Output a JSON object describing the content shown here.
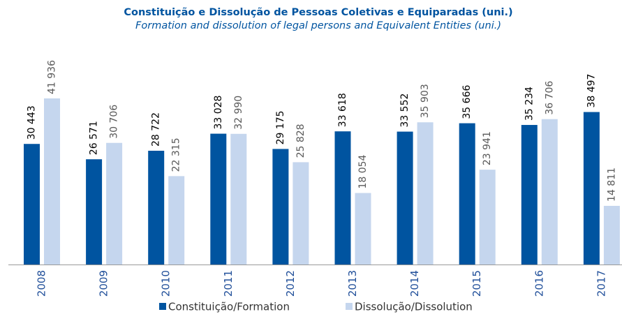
{
  "chart_data": {
    "type": "bar",
    "title": "Constituição e Dissolução de Pessoas Coletivas e Equiparadas (uni.)",
    "subtitle": "Formation and dissolution of legal persons and Equivalent Entities (uni.)",
    "categories": [
      "2008",
      "2009",
      "2010",
      "2011",
      "2012",
      "2013",
      "2014",
      "2015",
      "2016",
      "2017"
    ],
    "series": [
      {
        "name": "Constituição/Formation",
        "color": "#0054a0",
        "values": [
          30443,
          26571,
          28722,
          33028,
          29175,
          33618,
          33552,
          35666,
          35234,
          38497
        ],
        "value_labels": [
          "30 443",
          "26 571",
          "28 722",
          "33 028",
          "29 175",
          "33 618",
          "33 552",
          "35 666",
          "35 234",
          "38 497"
        ]
      },
      {
        "name": "Dissolução/Dissolution",
        "color": "#c5d6ee",
        "values": [
          41936,
          30706,
          22315,
          32990,
          25828,
          18054,
          35903,
          23941,
          36706,
          14811
        ],
        "value_labels": [
          "41 936",
          "30 706",
          "22 315",
          "32 990",
          "25 828",
          "18 054",
          "35 903",
          "23 941",
          "36 706",
          "14 811"
        ]
      }
    ],
    "legend": "bottom"
  }
}
